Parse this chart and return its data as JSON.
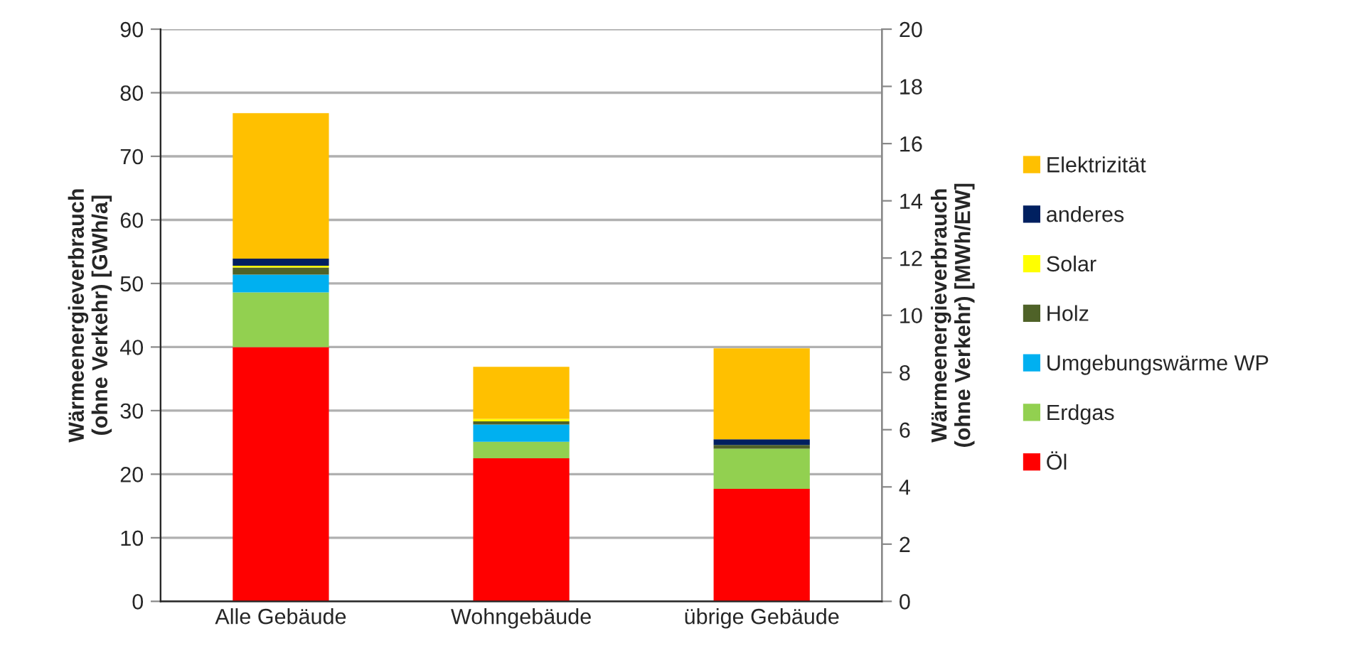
{
  "chart_data": {
    "type": "bar",
    "stacked": true,
    "categories": [
      "Alle Gebäude",
      "Wohngebäude",
      "übrige Gebäude"
    ],
    "ylabel": "Wärmeenergieverbrauch\n(ohne Verkehr) [GWh/a]",
    "y2label": "Wärmeenergieverbrauch\n(ohne Verkehr) [MWh/EW]",
    "ylim": [
      0,
      90
    ],
    "yticks": [
      0,
      10,
      20,
      30,
      40,
      50,
      60,
      70,
      80,
      90
    ],
    "y2lim": [
      0,
      20
    ],
    "y2ticks": [
      0,
      2,
      4,
      6,
      8,
      10,
      12,
      14,
      16,
      18,
      20
    ],
    "grid": "y",
    "legend": "right",
    "series": [
      {
        "name": "Öl",
        "color": "#ff0000",
        "values": [
          40,
          22.5,
          17.7
        ]
      },
      {
        "name": "Erdgas",
        "color": "#92d050",
        "values": [
          8.6,
          2.6,
          6.3
        ]
      },
      {
        "name": "Umgebungswärme WP",
        "color": "#00b0f0",
        "values": [
          2.8,
          2.7,
          0
        ]
      },
      {
        "name": "Holz",
        "color": "#4f6228",
        "values": [
          1.1,
          0.5,
          0.6
        ]
      },
      {
        "name": "Solar",
        "color": "#ffff00",
        "values": [
          0.3,
          0.4,
          0
        ]
      },
      {
        "name": "anderes",
        "color": "#002060",
        "values": [
          1.1,
          0,
          0.9
        ]
      },
      {
        "name": "Elektrizität",
        "color": "#ffc000",
        "values": [
          22.9,
          8.2,
          14.3
        ]
      }
    ]
  }
}
